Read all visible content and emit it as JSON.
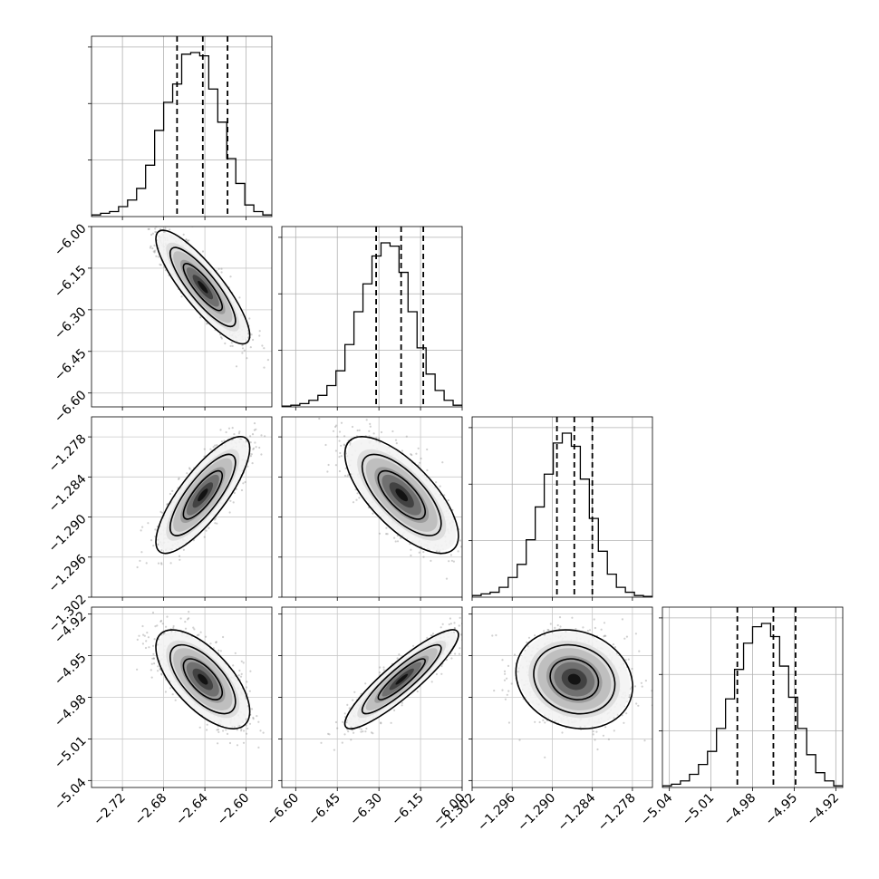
{
  "chart_data": {
    "type": "corner",
    "grid": true,
    "parameters": [
      {
        "range": [
          -2.75,
          -2.575
        ],
        "ticks": [
          "−2.72",
          "−2.68",
          "−2.64",
          "−2.60"
        ],
        "tick_values": [
          -2.72,
          -2.68,
          -2.64,
          -2.6
        ]
      },
      {
        "range": [
          -6.65,
          -6.0
        ],
        "ticks": [
          "−6.60",
          "−6.45",
          "−6.30",
          "−6.15",
          "−6.00"
        ],
        "tick_values": [
          -6.6,
          -6.45,
          -6.3,
          -6.15,
          -6.0
        ]
      },
      {
        "range": [
          -1.302,
          -1.275
        ],
        "ticks": [
          "−1.302",
          "−1.296",
          "−1.290",
          "−1.284",
          "−1.278"
        ],
        "tick_values": [
          -1.302,
          -1.296,
          -1.29,
          -1.284,
          -1.278
        ]
      },
      {
        "range": [
          -5.045,
          -4.915
        ],
        "ticks": [
          "−5.04",
          "−5.01",
          "−4.98",
          "−4.95",
          "−4.92"
        ],
        "tick_values": [
          -5.04,
          -5.01,
          -4.98,
          -4.95,
          -4.92
        ]
      }
    ],
    "histograms": [
      {
        "counts": [
          1,
          2,
          3,
          6,
          10,
          17,
          31,
          52,
          69,
          80,
          98,
          99,
          97,
          77,
          57,
          35,
          20,
          7,
          3,
          1
        ],
        "quantiles": [
          -2.667,
          -2.642,
          -2.618
        ]
      },
      {
        "counts": [
          0.5,
          1,
          2,
          4,
          7,
          13,
          22,
          38,
          58,
          75,
          92,
          100,
          98,
          82,
          58,
          36,
          20,
          10,
          4,
          1
        ],
        "quantiles": [
          -6.31,
          -6.22,
          -6.14
        ]
      },
      {
        "counts": [
          1,
          2,
          3,
          6,
          12,
          20,
          35,
          55,
          75,
          94,
          100,
          92,
          72,
          48,
          28,
          14,
          6,
          3,
          1,
          0.5
        ],
        "quantiles": [
          -1.2893,
          -1.2867,
          -1.284
        ]
      },
      {
        "counts": [
          1,
          2,
          4,
          8,
          14,
          22,
          36,
          54,
          72,
          88,
          98,
          100,
          92,
          74,
          55,
          36,
          20,
          9,
          4,
          1
        ],
        "quantiles": [
          -4.991,
          -4.965,
          -4.949
        ]
      }
    ],
    "scatter_panels": [
      {
        "row": 1,
        "col": 0,
        "center": [
          -2.642,
          -6.218
        ],
        "sd": [
          0.0198,
          0.089
        ],
        "rho": -0.85
      },
      {
        "row": 2,
        "col": 0,
        "center": [
          -2.642,
          -1.2867
        ],
        "sd": [
          0.0198,
          0.0038
        ],
        "rho": 0.8
      },
      {
        "row": 2,
        "col": 1,
        "center": [
          -6.218,
          -1.2867
        ],
        "sd": [
          0.089,
          0.0038
        ],
        "rho": -0.7
      },
      {
        "row": 3,
        "col": 0,
        "center": [
          -2.642,
          -4.967
        ],
        "sd": [
          0.0198,
          0.0155
        ],
        "rho": -0.65
      },
      {
        "row": 3,
        "col": 1,
        "center": [
          -6.218,
          -4.967
        ],
        "sd": [
          0.089,
          0.0155
        ],
        "rho": 0.9
      },
      {
        "row": 3,
        "col": 2,
        "center": [
          -1.2867,
          -4.967
        ],
        "sd": [
          0.0038,
          0.0155
        ],
        "rho": -0.15
      }
    ]
  }
}
